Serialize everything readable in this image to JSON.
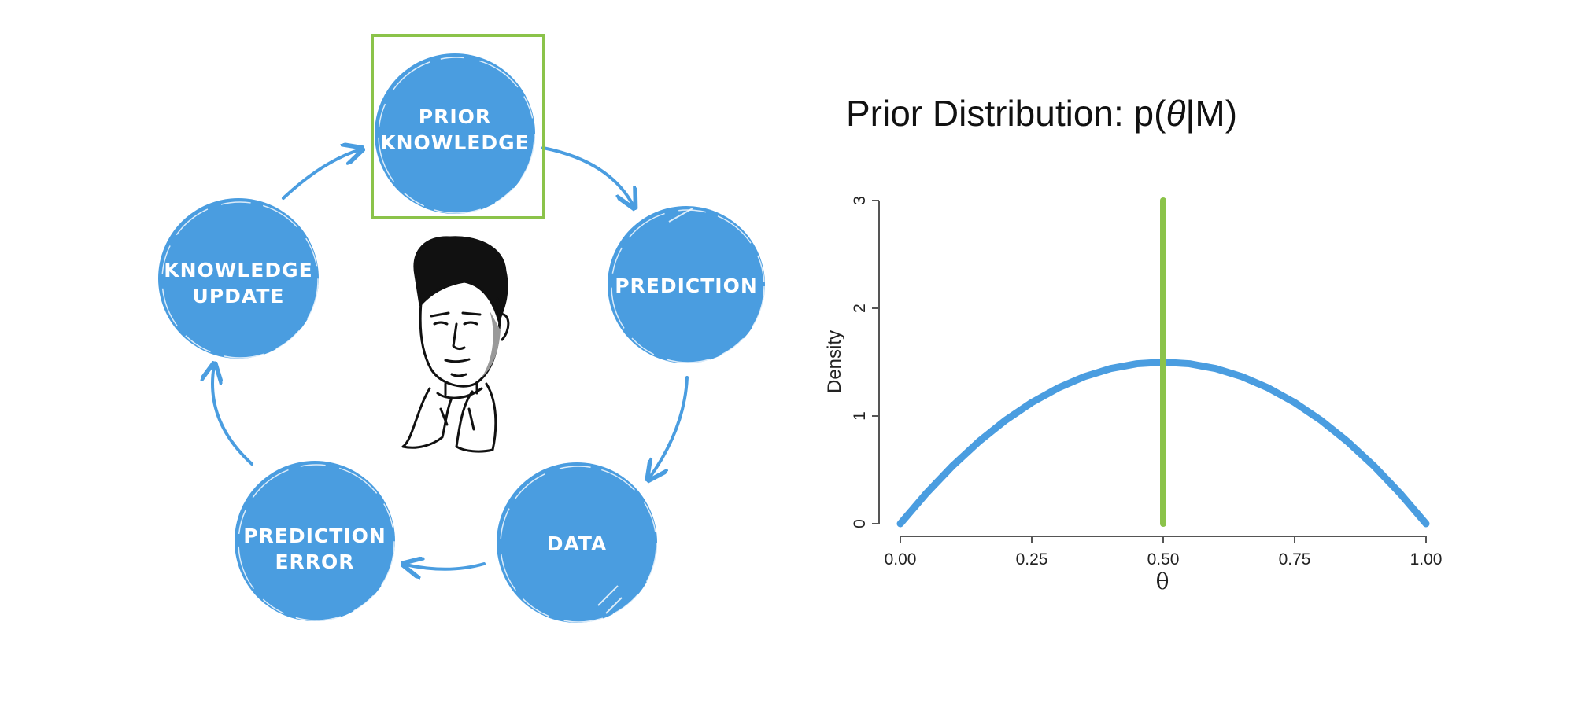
{
  "colors": {
    "node_fill": "#4a9de0",
    "arrow": "#4a9de0",
    "highlight": "#8bc34a",
    "density_curve": "#4a9de0",
    "axis": "#555555"
  },
  "cycle": {
    "nodes": [
      {
        "id": "prior",
        "lines": [
          "PRIOR",
          "KNOWLEDGE"
        ]
      },
      {
        "id": "prediction",
        "lines": [
          "PREDICTION"
        ]
      },
      {
        "id": "data",
        "lines": [
          "DATA"
        ]
      },
      {
        "id": "error",
        "lines": [
          "PREDICTION",
          "ERROR"
        ]
      },
      {
        "id": "update",
        "lines": [
          "KNOWLEDGE",
          "UPDATE"
        ]
      }
    ],
    "highlighted_node": "prior",
    "center_figure_icon": "portrait-sketch-icon"
  },
  "chart_data": {
    "type": "line",
    "title_prefix": "Prior Distribution: p(",
    "title_symbol": "θ",
    "title_suffix": "|M)",
    "xlabel": "θ",
    "ylabel": "Density",
    "xlim": [
      0,
      1
    ],
    "ylim": [
      0,
      3
    ],
    "x_ticks": [
      0,
      0.25,
      0.5,
      0.75,
      1
    ],
    "x_tick_labels": [
      "0.00",
      "0.25",
      "0.50",
      "0.75",
      "1.00"
    ],
    "y_ticks": [
      0,
      1,
      2,
      3
    ],
    "y_tick_labels": [
      "0",
      "1",
      "2",
      "3"
    ],
    "curve": {
      "x": [
        0,
        0.05,
        0.1,
        0.15,
        0.2,
        0.25,
        0.3,
        0.35,
        0.4,
        0.45,
        0.5,
        0.55,
        0.6,
        0.65,
        0.7,
        0.75,
        0.8,
        0.85,
        0.9,
        0.95,
        1
      ],
      "y": [
        0,
        0.285,
        0.54,
        0.765,
        0.96,
        1.125,
        1.26,
        1.365,
        1.44,
        1.485,
        1.5,
        1.485,
        1.44,
        1.365,
        1.26,
        1.125,
        0.96,
        0.765,
        0.54,
        0.285,
        0
      ]
    },
    "reference_line": {
      "x": 0.5,
      "y_from": 0,
      "y_to": 3
    },
    "grid": false,
    "legend": "none"
  }
}
